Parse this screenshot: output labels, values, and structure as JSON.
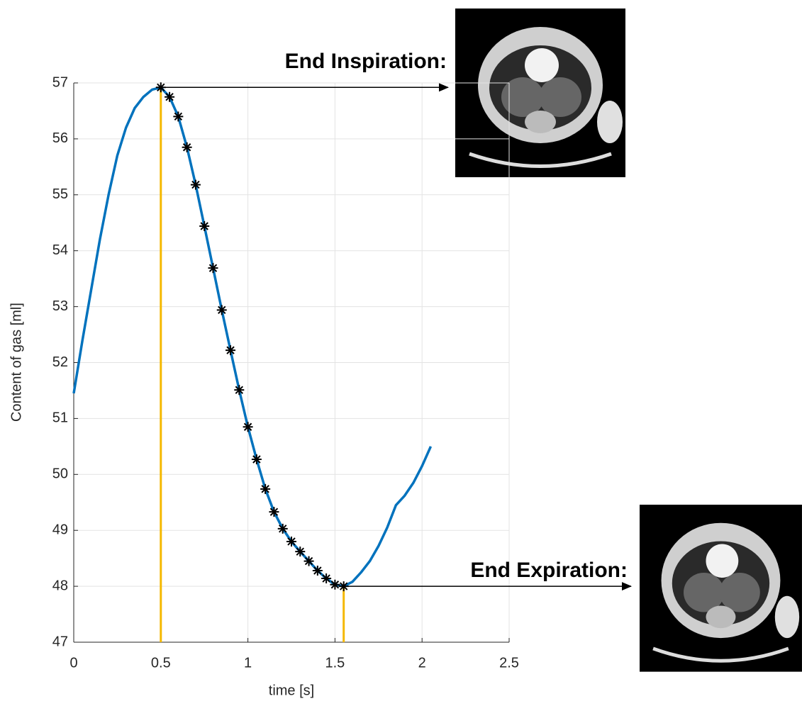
{
  "chart_data": {
    "type": "line",
    "x_label": "time [s]",
    "y_label": "Content of gas [ml]",
    "x": [
      0,
      0.05,
      0.1,
      0.15,
      0.2,
      0.25,
      0.3,
      0.35,
      0.4,
      0.45,
      0.5,
      0.55,
      0.6,
      0.65,
      0.7,
      0.75,
      0.8,
      0.85,
      0.9,
      0.95,
      1,
      1.05,
      1.1,
      1.15,
      1.2,
      1.25,
      1.3,
      1.35,
      1.4,
      1.45,
      1.5,
      1.55,
      1.6,
      1.65,
      1.7,
      1.75,
      1.8,
      1.85,
      1.9,
      1.95,
      2,
      2.05
    ],
    "series": [
      {
        "color": "#0072bd",
        "values": [
          51.45,
          52.4,
          53.3,
          54.2,
          55.0,
          55.7,
          56.2,
          56.55,
          56.75,
          56.88,
          56.92,
          56.75,
          56.4,
          55.85,
          55.18,
          54.44,
          53.69,
          52.94,
          52.22,
          51.51,
          50.85,
          50.27,
          49.74,
          49.33,
          49.03,
          48.8,
          48.62,
          48.45,
          48.28,
          48.14,
          48.03,
          48.0,
          48.08,
          48.25,
          48.45,
          48.72,
          49.05,
          49.45,
          49.62,
          49.85,
          50.15,
          50.5
        ]
      },
      {
        "color": "#000000",
        "marker": "asterisk",
        "values": [
          null,
          null,
          null,
          null,
          null,
          null,
          null,
          null,
          null,
          null,
          56.92,
          56.75,
          56.4,
          55.85,
          55.18,
          54.44,
          53.69,
          52.94,
          52.22,
          51.51,
          50.85,
          50.27,
          49.74,
          49.33,
          49.03,
          48.8,
          48.62,
          48.45,
          48.28,
          48.14,
          48.03,
          48.0,
          null,
          null,
          null,
          null,
          null,
          null,
          null,
          null,
          null,
          null
        ]
      }
    ],
    "vlines": [
      0.5,
      1.55
    ],
    "vline_color": "#f5b800",
    "annotations": [
      "End Inspiration:",
      "End Expiration:"
    ],
    "xlim": [
      0,
      2.5
    ],
    "xticks": [
      0,
      0.5,
      1,
      1.5,
      2,
      2.5
    ],
    "ylim": [
      47,
      57
    ],
    "yticks": [
      47,
      48,
      49,
      50,
      51,
      52,
      53,
      54,
      55,
      56,
      57
    ],
    "grid": true
  }
}
